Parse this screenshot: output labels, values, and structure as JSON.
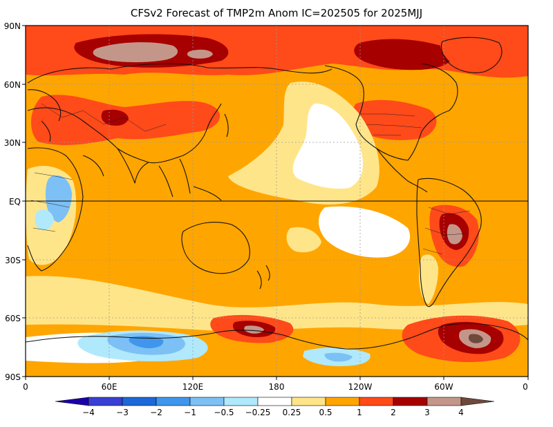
{
  "title": "CFSv2 Forecast of TMP2m Anom IC=202505 for 2025MJJ",
  "map": {
    "lat_ticks": [
      "90N",
      "60N",
      "30N",
      "EQ",
      "30S",
      "60S",
      "90S"
    ],
    "lon_ticks": [
      "0",
      "60E",
      "120E",
      "180",
      "120W",
      "60W",
      "0"
    ]
  },
  "colorbar": {
    "labels": [
      "−4",
      "−3",
      "−2",
      "−1",
      "−0.5",
      "−0.25",
      "0.25",
      "0.5",
      "1",
      "2",
      "3",
      "4"
    ],
    "colors": [
      "#1a00a8",
      "#3a3fd3",
      "#1e67d8",
      "#3f96ec",
      "#7cc0f5",
      "#b0e9fb",
      "#ffffff",
      "#ffe58a",
      "#ffa500",
      "#ff4a1a",
      "#a60000",
      "#c4968a",
      "#6e4a3c"
    ]
  },
  "chart_data": {
    "type": "heatmap",
    "title": "CFSv2 Forecast of TMP2m Anom IC=202505 for 2025MJJ",
    "x_ticks": [
      "0",
      "60E",
      "120E",
      "180",
      "120W",
      "60W",
      "0"
    ],
    "y_ticks": [
      "90N",
      "60N",
      "30N",
      "EQ",
      "30S",
      "60S",
      "90S"
    ],
    "xlim": [
      0,
      360
    ],
    "ylim": [
      -90,
      90
    ],
    "color_levels": [
      -4,
      -3,
      -2,
      -1,
      -0.5,
      -0.25,
      0.25,
      0.5,
      1,
      2,
      3,
      4
    ],
    "grid": true,
    "legend": "bottom colorbar"
  }
}
